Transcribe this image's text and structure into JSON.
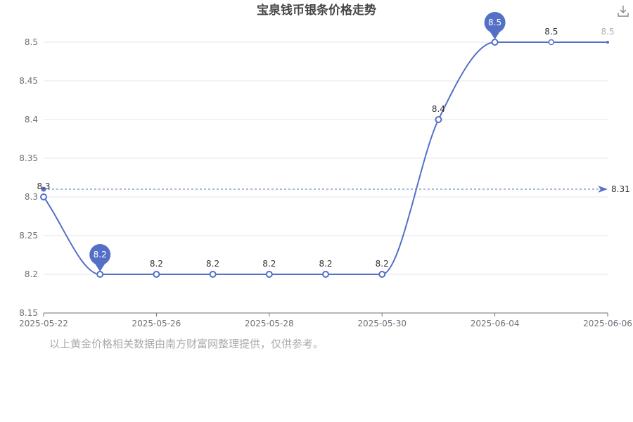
{
  "chart_data": {
    "type": "line",
    "title": "宝泉钱币银条价格走势",
    "xlabel": "",
    "ylabel": "",
    "x_tick_labels": [
      "2025-05-22",
      "2025-05-26",
      "2025-05-28",
      "2025-05-30",
      "2025-06-04",
      "2025-06-06"
    ],
    "y_tick_labels": [
      "8.15",
      "8.2",
      "8.25",
      "8.3",
      "8.35",
      "8.4",
      "8.45",
      "8.5"
    ],
    "ylim": [
      8.15,
      8.5
    ],
    "grid": true,
    "series": [
      {
        "color": "#5470c6",
        "points": [
          {
            "x": "2025-05-22",
            "y": 8.3,
            "label": "8.3"
          },
          {
            "x": "2025-05-23",
            "y": 8.2,
            "label": ""
          },
          {
            "x": "2025-05-26",
            "y": 8.2,
            "label": "8.2"
          },
          {
            "x": "2025-05-27",
            "y": 8.2,
            "label": "8.2"
          },
          {
            "x": "2025-05-28",
            "y": 8.2,
            "label": "8.2"
          },
          {
            "x": "2025-05-29",
            "y": 8.2,
            "label": "8.2"
          },
          {
            "x": "2025-05-30",
            "y": 8.2,
            "label": "8.2"
          },
          {
            "x": "2025-06-03",
            "y": 8.4,
            "label": "8.4"
          },
          {
            "x": "2025-06-04",
            "y": 8.5,
            "label": ""
          },
          {
            "x": "2025-06-05",
            "y": 8.5,
            "label": "8.5"
          },
          {
            "x": "2025-06-06",
            "y": 8.5,
            "label": "8.5"
          }
        ]
      }
    ],
    "mark_points": [
      {
        "type": "min",
        "x": "2025-05-23",
        "y": 8.2,
        "label": "8.2"
      },
      {
        "type": "max",
        "x": "2025-06-04",
        "y": 8.5,
        "label": "8.5"
      }
    ],
    "mark_line": {
      "type": "average",
      "y": 8.31,
      "label": "8.31"
    }
  },
  "footnote": "以上黄金价格相关数据由南方财富网整理提供，仅供参考。",
  "toolbar": {
    "download_icon": "download-icon"
  },
  "colors": {
    "series": "#5470c6",
    "grid": "#e0e6f1",
    "axis": "#6e7079"
  }
}
